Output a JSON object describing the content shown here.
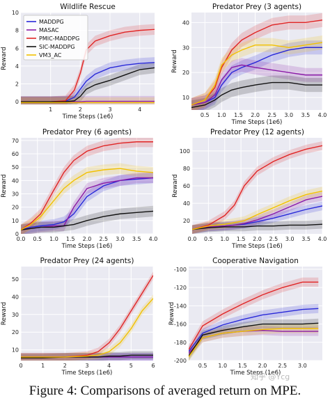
{
  "caption": "Figure 4: Comparisons of averaged return on MPE.",
  "watermark": "知乎 @Ycg",
  "colors": {
    "MADDPG": "#2828d8",
    "MASAC": "#8a1aa6",
    "PMIC-MADDPG": "#e02525",
    "SIC-MADDPG": "#111111",
    "VM3_AC": "#f2c100"
  },
  "chart_data": [
    {
      "type": "line",
      "title": "Wildlife Rescue",
      "xlabel": "Time Steps (1e6)",
      "ylabel": "Reward",
      "xlim": [
        0,
        4.5
      ],
      "ylim": [
        -0.3,
        10
      ],
      "xticks": [
        1,
        2,
        3,
        4
      ],
      "yticks": [
        0,
        2,
        4,
        6,
        8,
        10
      ],
      "grid": true,
      "legend": "top-left",
      "x": [
        0,
        0.5,
        1,
        1.5,
        1.8,
        2,
        2.2,
        2.5,
        3,
        3.5,
        4,
        4.5
      ],
      "series": [
        {
          "name": "MADDPG",
          "values": [
            0,
            0,
            0,
            0.05,
            0.5,
            1.4,
            2.3,
            3.1,
            3.8,
            4.1,
            4.3,
            4.4
          ]
        },
        {
          "name": "MASAC",
          "values": [
            0,
            0,
            0,
            0,
            0,
            0,
            0.05,
            0.05,
            0.05,
            0.05,
            0.05,
            0.05
          ]
        },
        {
          "name": "PMIC-MADDPG",
          "values": [
            0,
            0,
            0,
            0.1,
            1.3,
            3.2,
            5.8,
            6.8,
            7.4,
            7.8,
            8.0,
            8.1
          ]
        },
        {
          "name": "SIC-MADDPG",
          "values": [
            0,
            0,
            0,
            0,
            0.1,
            0.6,
            1.4,
            1.9,
            2.4,
            3.0,
            3.6,
            3.8
          ]
        },
        {
          "name": "VM3_AC",
          "values": [
            -0.1,
            -0.1,
            -0.1,
            -0.1,
            -0.1,
            -0.1,
            -0.1,
            -0.1,
            -0.1,
            -0.1,
            -0.1,
            -0.1
          ]
        }
      ]
    },
    {
      "type": "line",
      "title": "Predator Prey (3 agents)",
      "xlabel": "Time Steps (1e6)",
      "ylabel": "Reward",
      "xlim": [
        0.1,
        4.0
      ],
      "ylim": [
        5,
        44
      ],
      "xticks": [
        0.5,
        1.0,
        1.5,
        2.0,
        2.5,
        3.0,
        3.5,
        4.0
      ],
      "yticks": [
        10,
        20,
        30,
        40
      ],
      "grid": true,
      "x": [
        0.1,
        0.5,
        0.8,
        1.0,
        1.3,
        1.6,
        2.0,
        2.5,
        3.0,
        3.5,
        4.0
      ],
      "series": [
        {
          "name": "MADDPG",
          "values": [
            7,
            8,
            10,
            15,
            20,
            22,
            24,
            27,
            29,
            30,
            30
          ]
        },
        {
          "name": "MASAC",
          "values": [
            7,
            8,
            11,
            17,
            22,
            23,
            22,
            21,
            20,
            19,
            19
          ]
        },
        {
          "name": "PMIC-MADDPG",
          "values": [
            7,
            9,
            14,
            22,
            29,
            33,
            36,
            39,
            40,
            40,
            41
          ]
        },
        {
          "name": "SIC-MADDPG",
          "values": [
            6,
            7,
            9,
            11,
            13,
            14,
            15,
            16,
            16,
            15,
            15
          ]
        },
        {
          "name": "VM3_AC",
          "values": [
            7,
            9,
            15,
            23,
            27,
            29,
            31,
            31,
            30,
            31,
            32
          ]
        }
      ]
    },
    {
      "type": "line",
      "title": "Predator Prey (6 agents)",
      "xlabel": "Time Steps (1e6)",
      "ylabel": "Reward",
      "xlim": [
        0,
        4.0
      ],
      "ylim": [
        0,
        72
      ],
      "xticks": [
        0.0,
        0.5,
        1.0,
        1.5,
        2.0,
        2.5,
        3.0,
        3.5,
        4.0
      ],
      "yticks": [
        0,
        10,
        20,
        30,
        40,
        50,
        60,
        70
      ],
      "grid": true,
      "x": [
        0,
        0.3,
        0.6,
        1.0,
        1.3,
        1.6,
        2.0,
        2.5,
        3.0,
        3.5,
        4.0
      ],
      "series": [
        {
          "name": "MADDPG",
          "values": [
            3,
            5,
            6,
            7,
            9,
            15,
            28,
            36,
            40,
            41,
            42
          ]
        },
        {
          "name": "MASAC",
          "values": [
            3,
            4,
            5,
            6,
            6,
            20,
            34,
            38,
            40,
            42,
            42
          ]
        },
        {
          "name": "PMIC-MADDPG",
          "values": [
            3,
            8,
            15,
            33,
            46,
            55,
            62,
            66,
            68,
            69,
            69
          ]
        },
        {
          "name": "SIC-MADDPG",
          "values": [
            3,
            4,
            5,
            5,
            6,
            7,
            10,
            13,
            15,
            16,
            17
          ]
        },
        {
          "name": "VM3_AC",
          "values": [
            3,
            7,
            13,
            25,
            34,
            40,
            46,
            48,
            49,
            47,
            46
          ]
        }
      ]
    },
    {
      "type": "line",
      "title": "Predator Prey (12 agents)",
      "xlabel": "Time Steps (1e6)",
      "ylabel": "Reward",
      "xlim": [
        0,
        4.0
      ],
      "ylim": [
        5,
        115
      ],
      "xticks": [
        0.0,
        0.5,
        1.0,
        1.5,
        2.0,
        2.5,
        3.0,
        3.5,
        4.0
      ],
      "yticks": [
        20,
        40,
        60,
        80,
        100
      ],
      "grid": true,
      "x": [
        0,
        0.5,
        1.0,
        1.3,
        1.6,
        2.0,
        2.5,
        3.0,
        3.5,
        4.0
      ],
      "series": [
        {
          "name": "MADDPG",
          "values": [
            10,
            13,
            14,
            15,
            16,
            19,
            23,
            28,
            33,
            37
          ]
        },
        {
          "name": "MASAC",
          "values": [
            10,
            13,
            14,
            15,
            17,
            21,
            28,
            36,
            44,
            48
          ]
        },
        {
          "name": "PMIC-MADDPG",
          "values": [
            10,
            15,
            26,
            38,
            60,
            77,
            88,
            96,
            102,
            106
          ]
        },
        {
          "name": "SIC-MADDPG",
          "values": [
            10,
            12,
            13,
            13,
            13,
            14,
            14,
            15,
            15,
            16
          ]
        },
        {
          "name": "VM3_AC",
          "values": [
            10,
            14,
            16,
            18,
            20,
            27,
            35,
            43,
            50,
            54
          ]
        }
      ]
    },
    {
      "type": "line",
      "title": "Predator Prey (24 agents)",
      "xlabel": "Time Steps (1e6)",
      "ylabel": "Reward",
      "xlim": [
        0,
        6.0
      ],
      "ylim": [
        4,
        57
      ],
      "xticks": [
        0.0,
        1.0,
        2.0,
        3.0,
        4.0,
        5.0,
        6.0
      ],
      "yticks": [
        10,
        20,
        30,
        40,
        50
      ],
      "grid": true,
      "x": [
        0,
        1,
        2,
        3,
        3.5,
        4,
        4.5,
        5,
        5.5,
        6
      ],
      "series": [
        {
          "name": "MADDPG",
          "values": [
            6,
            6,
            6,
            6,
            6,
            6,
            6,
            6,
            6,
            6
          ]
        },
        {
          "name": "MASAC",
          "values": [
            6,
            6,
            6,
            6,
            6,
            6,
            6,
            6,
            6,
            6
          ]
        },
        {
          "name": "PMIC-MADDPG",
          "values": [
            6,
            6,
            6,
            7,
            9,
            14,
            22,
            32,
            42,
            52
          ]
        },
        {
          "name": "SIC-MADDPG",
          "values": [
            5.5,
            5.5,
            6,
            6,
            6,
            6.5,
            6.5,
            7,
            7,
            7
          ]
        },
        {
          "name": "VM3_AC",
          "values": [
            6,
            6,
            6,
            6.5,
            7,
            9,
            14,
            22,
            32,
            39
          ]
        }
      ]
    },
    {
      "type": "line",
      "title": "Cooperative Navigation",
      "xlabel": "Time Steps (1e6)",
      "ylabel": "Reward",
      "xlim": [
        0.15,
        3.5
      ],
      "ylim": [
        -200,
        -97
      ],
      "xticks": [
        0.5,
        1.0,
        1.5,
        2.0,
        2.5,
        3.0
      ],
      "yticks": [
        -200,
        -180,
        -160,
        -140,
        -120,
        -100
      ],
      "grid": true,
      "x": [
        0.15,
        0.5,
        1.0,
        1.5,
        2.0,
        2.5,
        3.0,
        3.4
      ],
      "series": [
        {
          "name": "MADDPG",
          "values": [
            -190,
            -170,
            -161,
            -155,
            -150,
            -147,
            -144,
            -143
          ]
        },
        {
          "name": "MASAC",
          "values": [
            -192,
            -175,
            -170,
            -168,
            -167,
            -168,
            -168,
            -168
          ]
        },
        {
          "name": "PMIC-MADDPG",
          "values": [
            -188,
            -162,
            -149,
            -138,
            -128,
            -120,
            -114,
            -114
          ]
        },
        {
          "name": "SIC-MADDPG",
          "values": [
            -195,
            -172,
            -167,
            -163,
            -160,
            -160,
            -160,
            -159
          ]
        },
        {
          "name": "VM3_AC",
          "values": [
            -196,
            -175,
            -170,
            -168,
            -166,
            -165,
            -165,
            -165
          ]
        }
      ]
    }
  ]
}
